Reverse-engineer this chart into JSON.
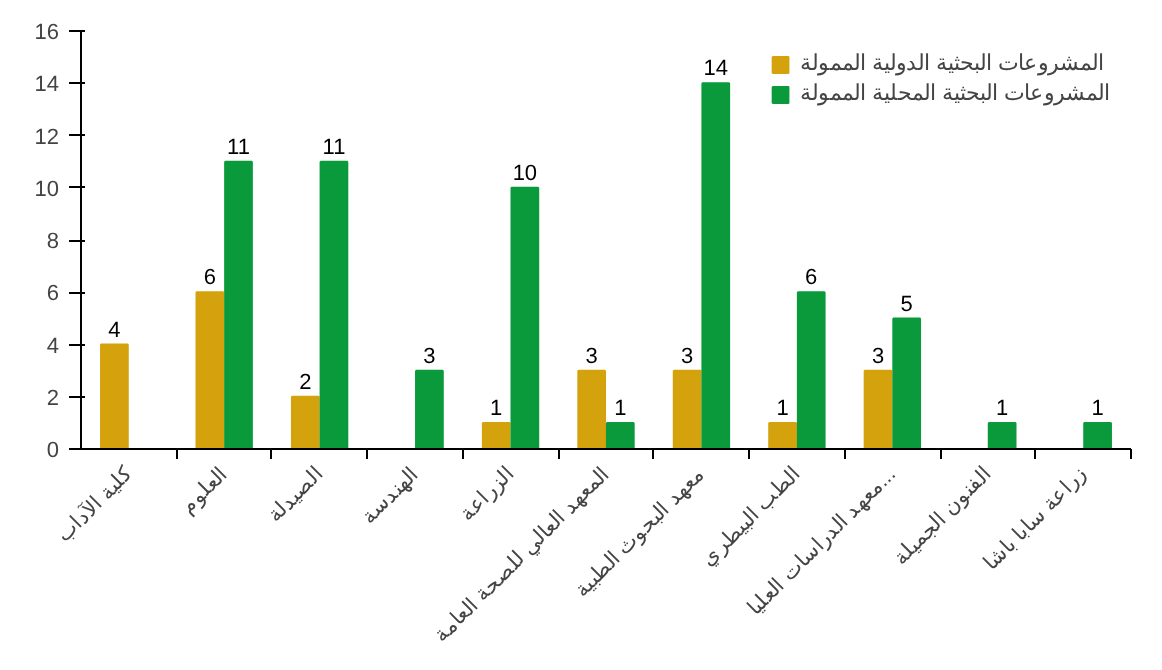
{
  "chart_data": {
    "type": "bar",
    "categories": [
      "كلية الآداب",
      "العلوم",
      "الصيدلة",
      "الهندسة",
      "الزراعة",
      "المعهد العالي للصحة العامة",
      "معهد البحوث الطبية",
      "الطب البيطري",
      "معهد الدراسات العليا...",
      "الفنون الجميلة",
      "زراعة سابا باشا"
    ],
    "series": [
      {
        "name": "المشروعات البحثية الدولية الممولة",
        "color": "#d4a20c",
        "values": [
          4,
          6,
          2,
          null,
          1,
          3,
          3,
          1,
          3,
          null,
          null
        ]
      },
      {
        "name": "المشروعات البحثية المحلية الممولة",
        "color": "#0a9a3c",
        "values": [
          null,
          11,
          11,
          3,
          10,
          1,
          14,
          6,
          5,
          1,
          1
        ]
      }
    ],
    "ylim": [
      0,
      16
    ],
    "yticks": [
      0,
      2,
      4,
      6,
      8,
      10,
      12,
      14,
      16
    ],
    "data_labels": true,
    "grid": false,
    "legend": "top right"
  }
}
